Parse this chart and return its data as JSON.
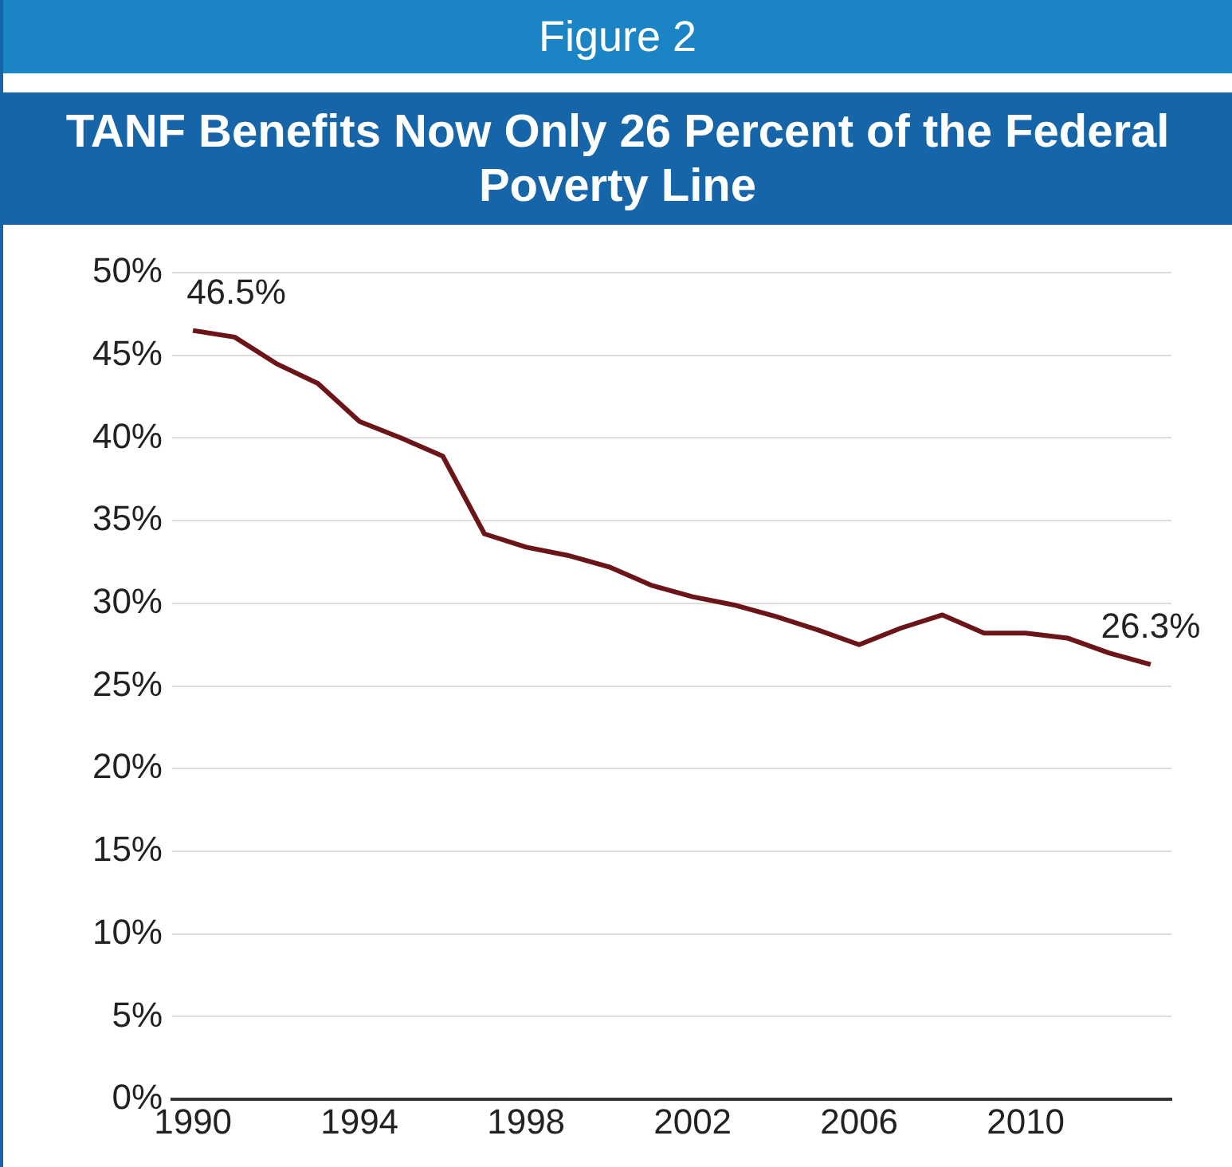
{
  "chart_data": {
    "type": "line",
    "subtitle": "Figure 2",
    "title": "TANF Benefits Now Only 26 Percent of the Federal Poverty Line",
    "categories": [
      "1990",
      null,
      null,
      null,
      "1994",
      null,
      null,
      null,
      "1998",
      null,
      null,
      null,
      "2002",
      null,
      null,
      null,
      "2006",
      null,
      null,
      null,
      "2010",
      null,
      null,
      null
    ],
    "series": [
      {
        "color": "#6b1518",
        "values": [
          46.5,
          46.1,
          44.5,
          43.3,
          41.0,
          40.0,
          38.9,
          34.2,
          33.4,
          32.9,
          32.2,
          31.1,
          30.4,
          29.9,
          29.2,
          28.4,
          27.5,
          28.5,
          29.3,
          28.2,
          28.2,
          27.9,
          27.0,
          26.3
        ],
        "value_labels": [
          "46.5%",
          null,
          null,
          null,
          null,
          null,
          null,
          null,
          null,
          null,
          null,
          null,
          null,
          null,
          null,
          null,
          null,
          null,
          null,
          null,
          null,
          null,
          null,
          "26.3%"
        ]
      }
    ],
    "ylim": [
      0,
      50
    ],
    "yticks": [
      {
        "value": 0,
        "label": "0%"
      },
      {
        "value": 5,
        "label": "5%"
      },
      {
        "value": 10,
        "label": "10%"
      },
      {
        "value": 15,
        "label": "15%"
      },
      {
        "value": 20,
        "label": "20%"
      },
      {
        "value": 25,
        "label": "25%"
      },
      {
        "value": 30,
        "label": "30%"
      },
      {
        "value": 35,
        "label": "35%"
      },
      {
        "value": 40,
        "label": "40%"
      },
      {
        "value": 45,
        "label": "45%"
      },
      {
        "value": 50,
        "label": "50%"
      }
    ],
    "grid": "y",
    "legend": false,
    "marker": "none",
    "line_style": "solid"
  }
}
